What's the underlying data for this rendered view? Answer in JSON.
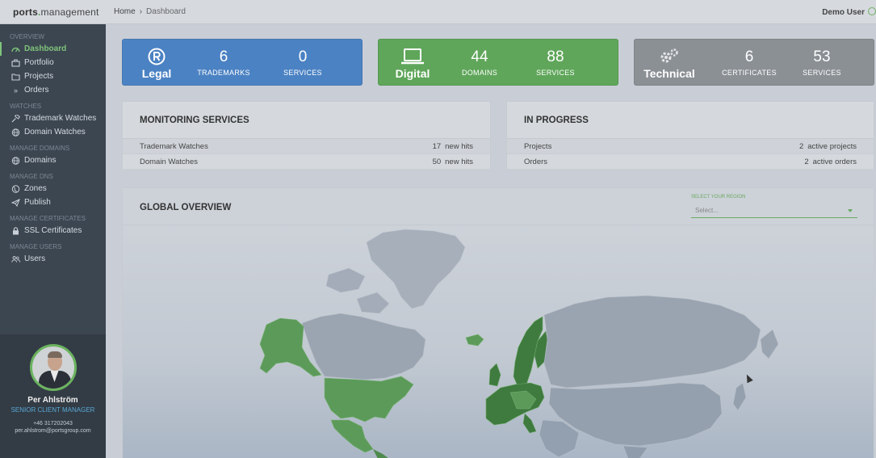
{
  "app": {
    "logo_main": "ports",
    "logo_dot": ".",
    "logo_sub": "management"
  },
  "breadcrumb": {
    "home": "Home",
    "separator": "›",
    "current": "Dashboard"
  },
  "user": {
    "name": "Demo User"
  },
  "sidebar": {
    "sections": [
      {
        "title": "OVERVIEW",
        "items": [
          {
            "label": "Dashboard",
            "icon": "dashboard-icon",
            "active": true
          },
          {
            "label": "Portfolio",
            "icon": "briefcase-icon"
          },
          {
            "label": "Projects",
            "icon": "folder-icon"
          },
          {
            "label": "Orders",
            "icon": "double-chevron-icon"
          }
        ]
      },
      {
        "title": "WATCHES",
        "items": [
          {
            "label": "Trademark Watches",
            "icon": "gavel-icon"
          },
          {
            "label": "Domain Watches",
            "icon": "globe-icon"
          }
        ]
      },
      {
        "title": "MANAGE DOMAINS",
        "items": [
          {
            "label": "Domains",
            "icon": "globe-icon"
          }
        ]
      },
      {
        "title": "MANAGE DNS",
        "items": [
          {
            "label": "Zones",
            "icon": "globe-half-icon"
          },
          {
            "label": "Publish",
            "icon": "paper-plane-icon"
          }
        ]
      },
      {
        "title": "MANAGE CERTIFICATES",
        "items": [
          {
            "label": "SSL Certificates",
            "icon": "lock-icon"
          }
        ]
      },
      {
        "title": "MANAGE USERS",
        "items": [
          {
            "label": "Users",
            "icon": "users-icon"
          }
        ]
      }
    ]
  },
  "profile": {
    "name": "Per Ahlström",
    "title": "SENIOR CLIENT MANAGER",
    "phone": "+46 317202043",
    "email": "per.ahlstrom@portsgroup.com"
  },
  "tiles": {
    "legal": {
      "label": "Legal",
      "icon": "registered-icon",
      "stats": [
        {
          "value": "6",
          "label": "TRADEMARKS"
        },
        {
          "value": "0",
          "label": "SERVICES"
        }
      ]
    },
    "digital": {
      "label": "Digital",
      "icon": "laptop-icon",
      "stats": [
        {
          "value": "44",
          "label": "DOMAINS"
        },
        {
          "value": "88",
          "label": "SERVICES"
        }
      ]
    },
    "technical": {
      "label": "Technical",
      "icon": "gears-icon",
      "stats": [
        {
          "value": "6",
          "label": "CERTIFICATES"
        },
        {
          "value": "53",
          "label": "SERVICES"
        }
      ]
    }
  },
  "monitoring": {
    "title": "MONITORING SERVICES",
    "rows": [
      {
        "label": "Trademark Watches",
        "count": "17",
        "unit": "new hits"
      },
      {
        "label": "Domain Watches",
        "count": "50",
        "unit": "new hits"
      }
    ]
  },
  "in_progress": {
    "title": "IN PROGRESS",
    "rows": [
      {
        "label": "Projects",
        "count": "2",
        "unit": "active projects"
      },
      {
        "label": "Orders",
        "count": "2",
        "unit": "active orders"
      }
    ]
  },
  "global": {
    "title": "GLOBAL OVERVIEW",
    "region_label": "SELECT YOUR REGION",
    "region_placeholder": "Select..."
  },
  "colors": {
    "accent_green": "#5fa65a",
    "legal_blue": "#4b82c3",
    "technical_gray": "#8b9095",
    "map_highlight_dark": "#3f7a3f",
    "map_highlight": "#5c9a5a",
    "map_land": "#9aa4b1"
  }
}
